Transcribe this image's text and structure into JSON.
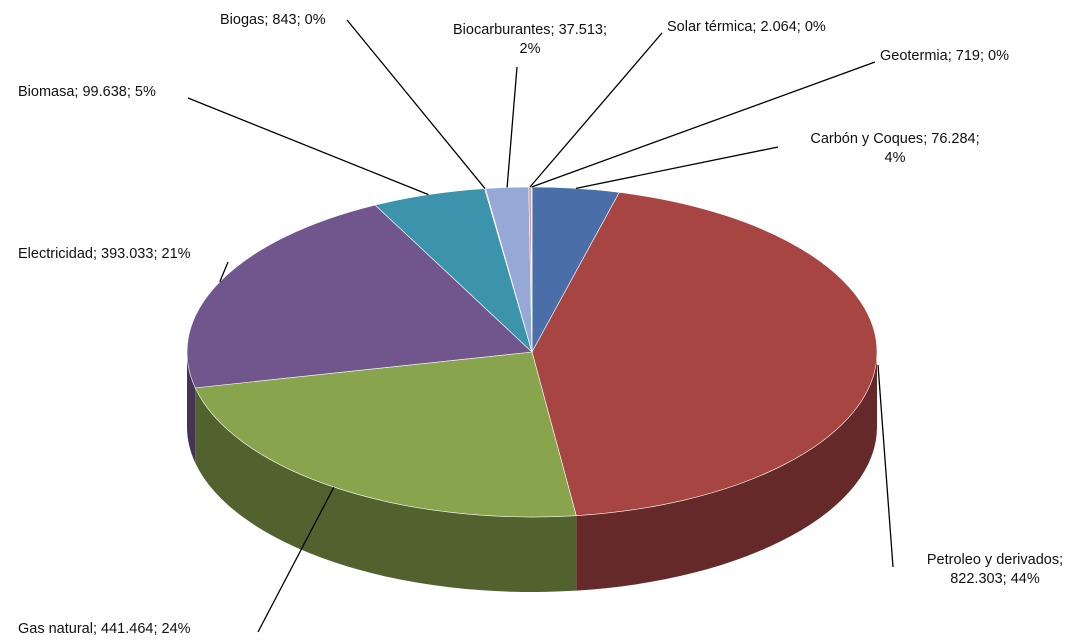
{
  "chart_data": {
    "type": "pie3d",
    "categories": [
      "Carbón y Coques",
      "Petroleo y derivados",
      "Gas natural",
      "Electricidad",
      "Biomasa",
      "Biogas",
      "Biocarburantes",
      "Solar térmica",
      "Geotermia"
    ],
    "values": [
      76284,
      822303,
      441464,
      393033,
      99638,
      843,
      37513,
      2064,
      719
    ],
    "value_labels": [
      "76.284",
      "822.303",
      "441.464",
      "393.033",
      "99.638",
      "843",
      "37.513",
      "2.064",
      "719"
    ],
    "percent_labels": [
      "4%",
      "44%",
      "24%",
      "21%",
      "5%",
      "0%",
      "2%",
      "0%",
      "0%"
    ],
    "label_separator": "; ",
    "colors": [
      "#4a6fa8",
      "#a64542",
      "#88a44c",
      "#71568e",
      "#3c93ac",
      "#d9883a",
      "#96a9d6",
      "#d69390",
      "#bfd398"
    ]
  }
}
